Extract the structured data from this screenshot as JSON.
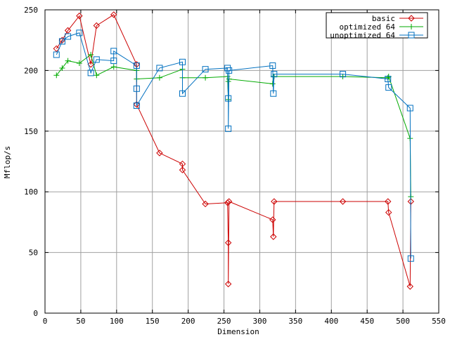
{
  "chart_data": {
    "type": "line",
    "title": "",
    "xlabel": "Dimension",
    "ylabel": "Mflop/s",
    "xlim": [
      0,
      550
    ],
    "ylim": [
      0,
      250
    ],
    "xticks": [
      0,
      50,
      100,
      150,
      200,
      250,
      300,
      350,
      400,
      450,
      500,
      550
    ],
    "yticks": [
      0,
      50,
      100,
      150,
      200,
      250
    ],
    "grid": true,
    "legend_position": "top-right",
    "series": [
      {
        "name": "basic",
        "color": "#cc0000",
        "marker": "diamond",
        "x": [
          16,
          24,
          32,
          48,
          64,
          72,
          96,
          128,
          128,
          160,
          192,
          192,
          224,
          255,
          256,
          256,
          257,
          318,
          319,
          320,
          416,
          479,
          480,
          510,
          511
        ],
        "y": [
          218,
          225,
          233,
          245,
          205,
          237,
          246,
          205,
          172,
          132,
          123,
          118,
          90,
          91,
          58,
          24,
          92,
          77,
          63,
          92,
          92,
          92,
          83,
          22,
          92
        ]
      },
      {
        "name": "optimized 64",
        "color": "#00aa00",
        "marker": "plus",
        "x": [
          16,
          24,
          32,
          48,
          64,
          72,
          96,
          128,
          128,
          160,
          192,
          192,
          224,
          255,
          256,
          256,
          257,
          318,
          319,
          320,
          416,
          479,
          480,
          510,
          511
        ],
        "y": [
          196,
          202,
          208,
          206,
          213,
          196,
          203,
          200,
          193,
          194,
          201,
          194,
          194,
          195,
          176,
          191,
          193,
          189,
          195,
          195,
          195,
          194,
          195,
          144,
          96
        ]
      },
      {
        "name": "unoptimized 64",
        "color": "#0070c0",
        "marker": "square",
        "x": [
          16,
          24,
          32,
          48,
          64,
          72,
          96,
          96,
          128,
          128,
          128,
          160,
          192,
          192,
          224,
          255,
          256,
          256,
          257,
          318,
          319,
          320,
          416,
          479,
          480,
          510,
          511
        ],
        "y": [
          213,
          224,
          228,
          231,
          198,
          209,
          208,
          216,
          204,
          185,
          171,
          202,
          207,
          181,
          201,
          202,
          177,
          152,
          200,
          204,
          181,
          197,
          197,
          193,
          186,
          169,
          45
        ]
      }
    ]
  }
}
